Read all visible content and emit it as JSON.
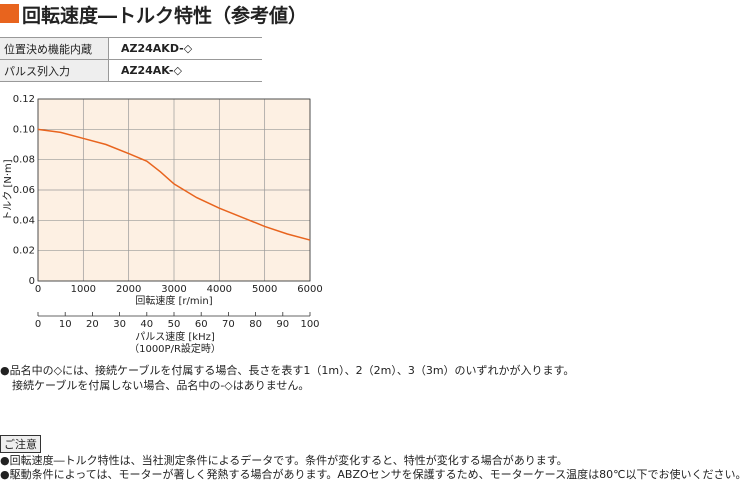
{
  "header": {
    "title": "回転速度―トルク特性（参考値）"
  },
  "table": {
    "rows": [
      [
        "位置決め機能内蔵",
        "AZ24AKD-◇"
      ],
      [
        "パルス列入力",
        "AZ24AK-◇"
      ]
    ]
  },
  "chart_data": {
    "type": "line",
    "x": [
      0,
      500,
      1000,
      1500,
      2000,
      2400,
      2700,
      3000,
      3500,
      4000,
      4500,
      5000,
      5500,
      6000
    ],
    "values": [
      0.1,
      0.098,
      0.094,
      0.09,
      0.084,
      0.079,
      0.072,
      0.064,
      0.055,
      0.048,
      0.042,
      0.036,
      0.031,
      0.027
    ],
    "color": "#e8641e",
    "background": "#fdf0e3",
    "grid": true,
    "xlim": [
      0,
      6000
    ],
    "xticks": [
      0,
      1000,
      2000,
      3000,
      4000,
      5000,
      6000
    ],
    "ylim": [
      0,
      0.12
    ],
    "yticks": [
      {
        "value": 0,
        "label": "0"
      },
      {
        "value": 0.02,
        "label": "0.02"
      },
      {
        "value": 0.04,
        "label": "0.04"
      },
      {
        "value": 0.06,
        "label": "0.06"
      },
      {
        "value": 0.08,
        "label": "0.08"
      },
      {
        "value": 0.1,
        "label": "0.10"
      },
      {
        "value": 0.12,
        "label": "0.12"
      }
    ],
    "x_label": "回転速度 [r/min]",
    "y_label": "トルク [N·m]",
    "x2lim": [
      0,
      100
    ],
    "x2ticks": [
      0,
      10,
      20,
      30,
      40,
      50,
      60,
      70,
      80,
      90,
      100
    ],
    "x2_label": "パルス速度 [kHz]",
    "x2_sublabel": "（1000P/R設定時）"
  },
  "notes": [
    "●品名中の◇には、接続ケーブルを付属する場合、長さを表す1（1m）、2（2m）、3（3m）のいずれかが入ります。",
    "接続ケーブルを付属しない場合、品名中の-◇はありません。"
  ],
  "caution": {
    "title": "ご注意",
    "lines": [
      "●回転速度―トルク特性は、当社測定条件によるデータです。条件が変化すると、特性が変化する場合があります。",
      "●駆動条件によっては、モーターが著しく発熱する場合があります。ABZOセンサを保護するため、モーターケース温度は80℃以下でお使いください。"
    ]
  }
}
